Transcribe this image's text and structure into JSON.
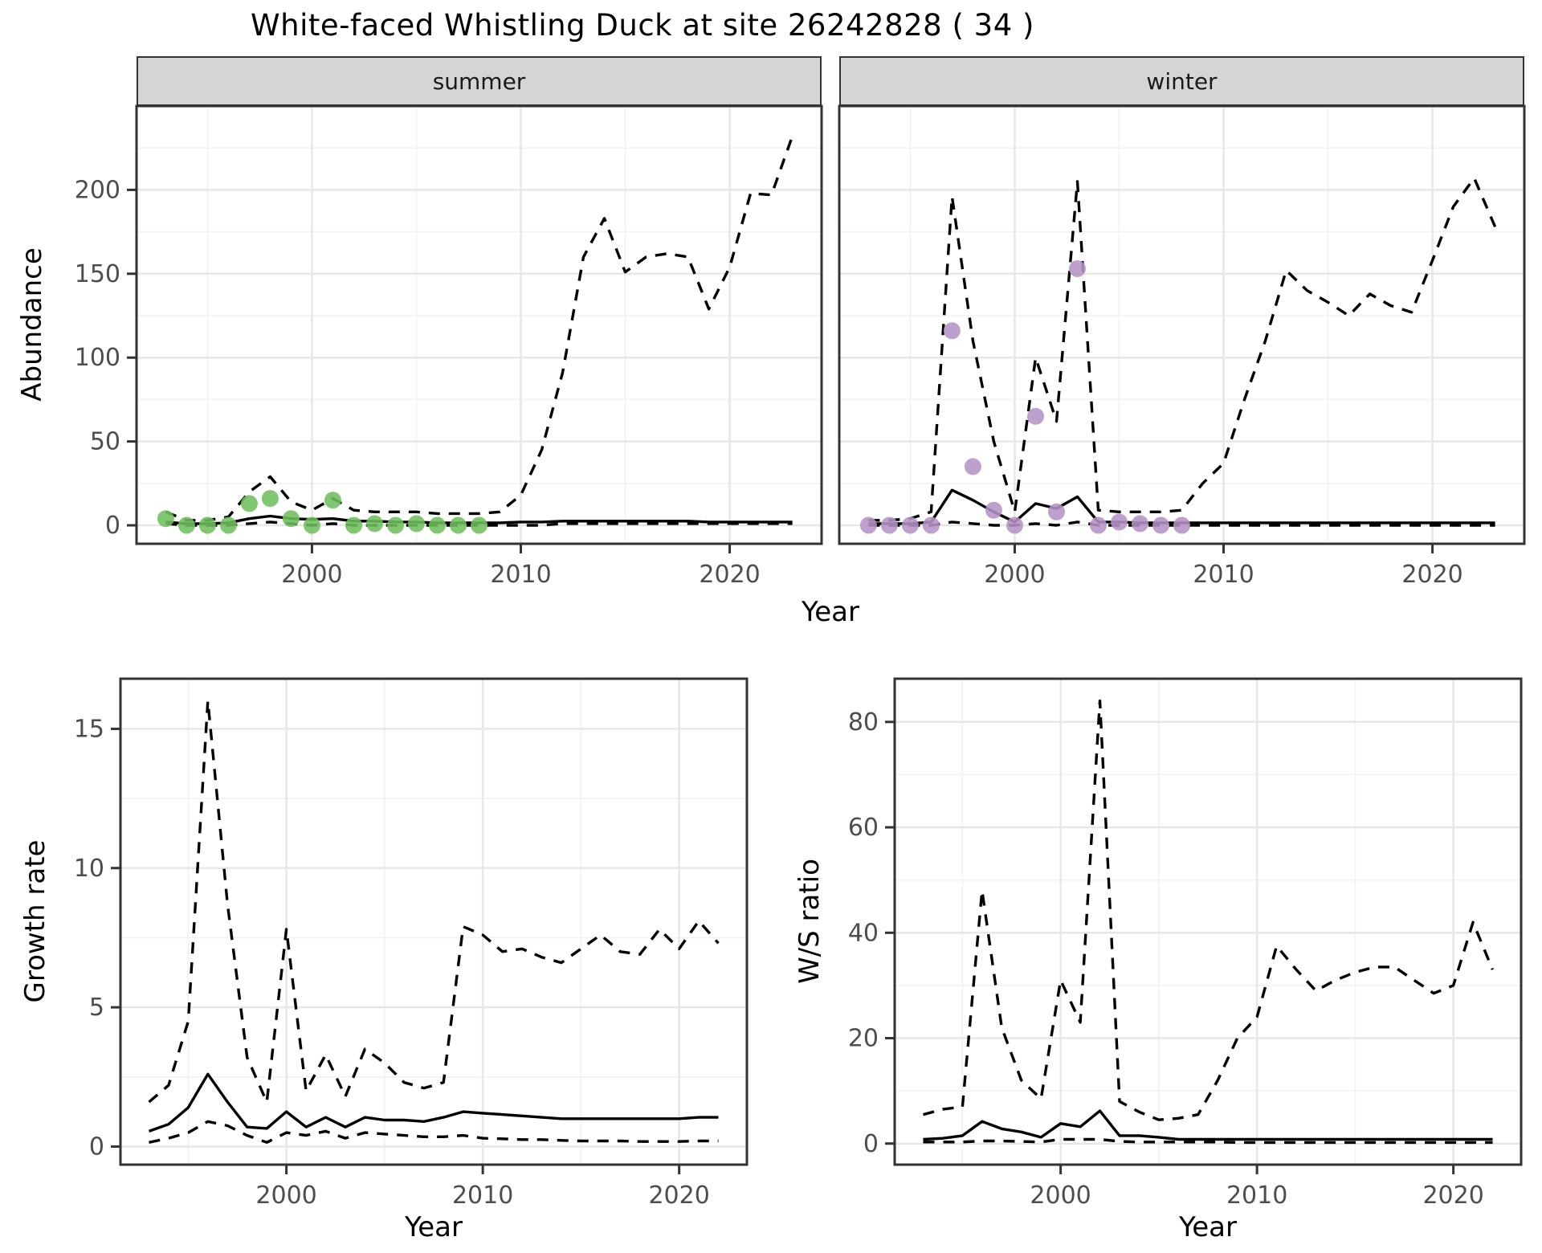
{
  "title": "White-faced Whistling Duck at site 26242828 ( 34 )",
  "axes": {
    "top_y_label": "Abundance",
    "top_x_label": "Year",
    "bottom_left_y_label": "Growth rate",
    "bottom_left_x_label": "Year",
    "bottom_right_y_label": "W/S ratio",
    "bottom_right_x_label": "Year"
  },
  "facets": {
    "summer": "summer",
    "winter": "winter"
  },
  "colors": {
    "summer_points": "#6fbf5f",
    "winter_points": "#b593c6",
    "line": "#000000",
    "panel_border": "#333333",
    "grid_major": "#e7e7e7",
    "grid_minor": "#f2f2f2",
    "strip_bg": "#d5d5d5",
    "tick_label": "#4d4d4d"
  },
  "chart_data": [
    {
      "id": "summer",
      "type": "line",
      "facet": "summer",
      "title": "Abundance - summer facet",
      "xlabel": "Year",
      "ylabel": "Abundance",
      "xlim": [
        1991.6,
        2024.4
      ],
      "ylim": [
        -11,
        250
      ],
      "x_ticks": [
        2000,
        2010,
        2020
      ],
      "x_minor_ticks": [
        1995,
        2005,
        2015
      ],
      "y_ticks": [
        0,
        50,
        100,
        150,
        200
      ],
      "y_minor_ticks": [
        25,
        75,
        125,
        175,
        225
      ],
      "show_y_tick_labels": true,
      "x_years": [
        1993,
        1994,
        1995,
        1996,
        1997,
        1998,
        1999,
        2000,
        2001,
        2002,
        2003,
        2004,
        2005,
        2006,
        2007,
        2008,
        2009,
        2010,
        2011,
        2012,
        2013,
        2014,
        2015,
        2016,
        2017,
        2018,
        2019,
        2020,
        2021,
        2022,
        2023
      ],
      "series": [
        {
          "name": "upper_95_CI",
          "style": "dashed",
          "values": [
            8,
            3,
            3,
            5,
            20,
            29,
            14,
            9,
            16,
            9,
            8,
            8,
            8,
            7,
            7,
            7,
            8,
            18,
            45,
            91,
            160,
            183,
            151,
            160,
            162,
            160,
            129,
            154,
            198,
            197,
            232
          ]
        },
        {
          "name": "median",
          "style": "solid",
          "values": [
            2,
            1,
            1,
            1.5,
            4,
            5.5,
            4,
            3.5,
            4,
            2.5,
            2.5,
            2,
            2,
            1.5,
            1.5,
            1.5,
            1.5,
            2,
            2,
            2.5,
            2.5,
            2.5,
            2.5,
            2.5,
            2.5,
            2.5,
            2,
            2,
            2,
            2,
            2
          ]
        },
        {
          "name": "lower_95_CI",
          "style": "dashed",
          "values": [
            1,
            0,
            0,
            0,
            1,
            2,
            1,
            0,
            1,
            0,
            0,
            0,
            0,
            0,
            0,
            0,
            0,
            0,
            0,
            1,
            1,
            1,
            1,
            1,
            1,
            1,
            1,
            1,
            1,
            1,
            1
          ]
        }
      ],
      "observed_points": {
        "name": "observed_summer_counts",
        "color_key": "summer_points",
        "years": [
          1993,
          1994,
          1995,
          1996,
          1997,
          1998,
          1999,
          2000,
          2001,
          2002,
          2003,
          2004,
          2005,
          2006,
          2007,
          2008
        ],
        "values": [
          4,
          0,
          0,
          0,
          13,
          16,
          4,
          0,
          15,
          0,
          1,
          0,
          1,
          0,
          0,
          0
        ]
      }
    },
    {
      "id": "winter",
      "type": "line",
      "facet": "winter",
      "title": "Abundance - winter facet",
      "xlabel": "Year",
      "ylabel": "Abundance",
      "xlim": [
        1991.6,
        2024.4
      ],
      "ylim": [
        -11,
        250
      ],
      "x_ticks": [
        2000,
        2010,
        2020
      ],
      "x_minor_ticks": [
        1995,
        2005,
        2015
      ],
      "y_ticks": [
        0,
        50,
        100,
        150,
        200
      ],
      "y_minor_ticks": [
        25,
        75,
        125,
        175,
        225
      ],
      "show_y_tick_labels": false,
      "x_years": [
        1993,
        1994,
        1995,
        1996,
        1997,
        1998,
        1999,
        2000,
        2001,
        2002,
        2003,
        2004,
        2005,
        2006,
        2007,
        2008,
        2009,
        2010,
        2011,
        2012,
        2013,
        2014,
        2015,
        2016,
        2017,
        2018,
        2019,
        2020,
        2021,
        2022,
        2023
      ],
      "series": [
        {
          "name": "upper_95_CI",
          "style": "dashed",
          "values": [
            3,
            3,
            4,
            8,
            196,
            110,
            50,
            8,
            100,
            62,
            205,
            9,
            8,
            8,
            8,
            9,
            25,
            37,
            75,
            110,
            152,
            140,
            133,
            125,
            138,
            131,
            127,
            158,
            190,
            207,
            178
          ]
        },
        {
          "name": "median",
          "style": "solid",
          "values": [
            1,
            1,
            1,
            2,
            21,
            15,
            8,
            2,
            13,
            10,
            17,
            2,
            2,
            1.5,
            1.5,
            1.5,
            1.5,
            1.5,
            1.5,
            1.5,
            1.5,
            1.5,
            1.5,
            1.5,
            1.5,
            1.5,
            1.5,
            1.5,
            1.5,
            1.5,
            1.5
          ]
        },
        {
          "name": "lower_95_CI",
          "style": "dashed",
          "values": [
            0,
            0,
            0,
            0,
            2,
            1,
            0,
            0,
            1,
            0,
            2,
            0,
            0,
            0,
            0,
            0,
            0,
            0,
            0,
            0,
            0,
            0,
            0,
            0,
            0,
            0,
            0,
            0,
            0,
            0,
            0
          ]
        }
      ],
      "observed_points": {
        "name": "observed_winter_counts",
        "color_key": "winter_points",
        "years": [
          1993,
          1994,
          1995,
          1996,
          1997,
          1998,
          1999,
          2000,
          2001,
          2002,
          2003,
          2004,
          2005,
          2006,
          2007,
          2008
        ],
        "values": [
          0,
          0,
          0,
          0,
          116,
          35,
          9,
          0,
          65,
          8,
          153,
          0,
          2,
          1,
          0,
          0
        ]
      }
    },
    {
      "id": "growth",
      "type": "line",
      "facet": null,
      "title": "Growth rate",
      "xlabel": "Year",
      "ylabel": "Growth rate",
      "xlim": [
        1991.55,
        2023.45
      ],
      "ylim": [
        -0.65,
        16.8
      ],
      "x_ticks": [
        2000,
        2010,
        2020
      ],
      "x_minor_ticks": [
        1995,
        2005,
        2015
      ],
      "y_ticks": [
        0,
        5,
        10,
        15
      ],
      "y_minor_ticks": [
        2.5,
        7.5,
        12.5
      ],
      "show_y_tick_labels": true,
      "x_years": [
        1993,
        1994,
        1995,
        1996,
        1997,
        1998,
        1999,
        2000,
        2001,
        2002,
        2003,
        2004,
        2005,
        2006,
        2007,
        2008,
        2009,
        2010,
        2011,
        2012,
        2013,
        2014,
        2015,
        2016,
        2017,
        2018,
        2019,
        2020,
        2021,
        2022
      ],
      "series": [
        {
          "name": "upper_95_CI",
          "style": "dashed",
          "values": [
            1.6,
            2.2,
            4.5,
            16.0,
            8.7,
            3.2,
            1.6,
            7.8,
            2.0,
            3.3,
            1.8,
            3.5,
            3.0,
            2.3,
            2.1,
            2.3,
            7.9,
            7.6,
            7.0,
            7.1,
            6.8,
            6.6,
            7.1,
            7.6,
            7.0,
            6.9,
            7.8,
            7.1,
            8.1,
            7.3
          ]
        },
        {
          "name": "median",
          "style": "solid",
          "values": [
            0.55,
            0.8,
            1.4,
            2.6,
            1.6,
            0.7,
            0.65,
            1.25,
            0.7,
            1.05,
            0.7,
            1.05,
            0.95,
            0.95,
            0.9,
            1.05,
            1.25,
            1.2,
            1.15,
            1.1,
            1.05,
            1.0,
            1.0,
            1.0,
            1.0,
            1.0,
            1.0,
            1.0,
            1.05,
            1.05
          ]
        },
        {
          "name": "lower_95_CI",
          "style": "dashed",
          "values": [
            0.15,
            0.3,
            0.5,
            0.9,
            0.75,
            0.4,
            0.15,
            0.5,
            0.4,
            0.55,
            0.3,
            0.5,
            0.45,
            0.4,
            0.35,
            0.35,
            0.4,
            0.3,
            0.28,
            0.25,
            0.25,
            0.22,
            0.2,
            0.2,
            0.2,
            0.18,
            0.18,
            0.18,
            0.2,
            0.2
          ]
        }
      ],
      "observed_points": null
    },
    {
      "id": "ws",
      "type": "line",
      "facet": null,
      "title": "W/S ratio",
      "xlabel": "Year",
      "ylabel": "W/S ratio",
      "xlim": [
        1991.55,
        2023.45
      ],
      "ylim": [
        -4,
        88.2
      ],
      "x_ticks": [
        2000,
        2010,
        2020
      ],
      "x_minor_ticks": [
        1995,
        2005,
        2015
      ],
      "y_ticks": [
        0,
        20,
        40,
        60,
        80
      ],
      "y_minor_ticks": [
        10,
        30,
        50,
        70
      ],
      "show_y_tick_labels": true,
      "x_years": [
        1993,
        1994,
        1995,
        1996,
        1997,
        1998,
        1999,
        2000,
        2001,
        2002,
        2003,
        2004,
        2005,
        2006,
        2007,
        2008,
        2009,
        2010,
        2011,
        2012,
        2013,
        2014,
        2015,
        2016,
        2017,
        2018,
        2019,
        2020,
        2021,
        2022
      ],
      "series": [
        {
          "name": "upper_95_CI",
          "style": "dashed",
          "values": [
            5.5,
            6.5,
            7.0,
            48,
            22,
            12,
            8.5,
            31,
            23,
            84,
            8,
            6,
            4.5,
            4.8,
            5.5,
            12,
            20,
            24,
            37.5,
            33,
            29,
            31,
            32.5,
            33.5,
            33.5,
            31,
            28.5,
            30,
            42,
            33
          ]
        },
        {
          "name": "median",
          "style": "solid",
          "values": [
            0.8,
            1.0,
            1.5,
            4.2,
            2.8,
            2.2,
            1.2,
            3.8,
            3.2,
            6.2,
            1.5,
            1.5,
            1.2,
            0.8,
            0.8,
            0.8,
            0.8,
            0.8,
            0.8,
            0.8,
            0.8,
            0.8,
            0.8,
            0.8,
            0.8,
            0.8,
            0.8,
            0.8,
            0.8,
            0.8
          ]
        },
        {
          "name": "lower_95_CI",
          "style": "dashed",
          "values": [
            0.3,
            0.3,
            0.3,
            0.5,
            0.5,
            0.4,
            0.3,
            0.8,
            0.8,
            0.8,
            0.4,
            0.3,
            0.3,
            0.3,
            0.3,
            0.3,
            0.2,
            0.2,
            0.2,
            0.2,
            0.2,
            0.2,
            0.2,
            0.2,
            0.2,
            0.2,
            0.2,
            0.2,
            0.2,
            0.2
          ]
        }
      ],
      "observed_points": null
    }
  ]
}
